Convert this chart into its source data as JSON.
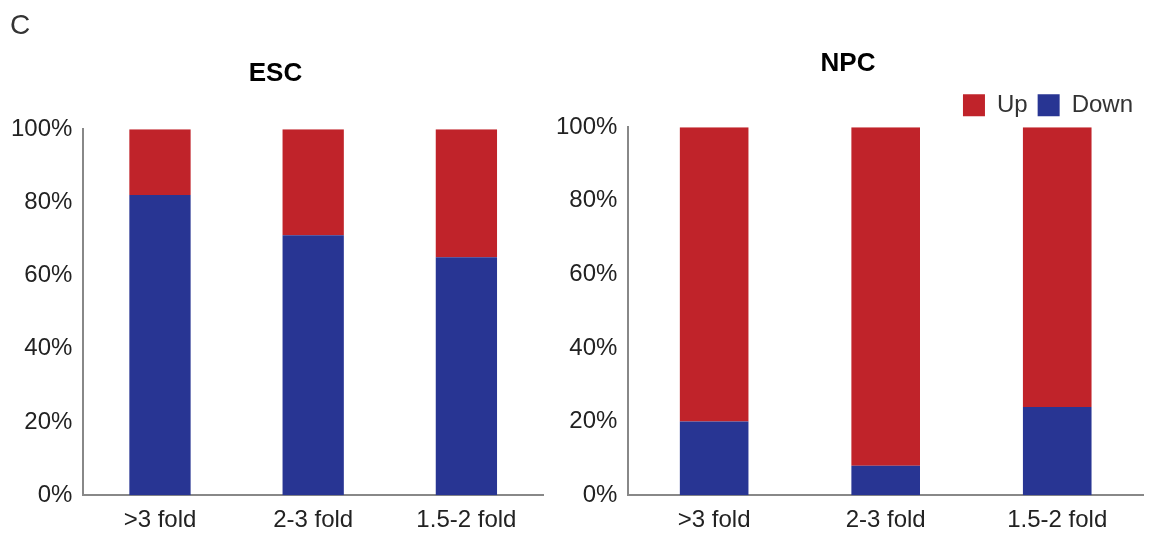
{
  "chart_data": [
    {
      "type": "bar",
      "title": "ESC",
      "annotations": [
        "C"
      ],
      "categories": [
        ">3 fold",
        "2-3 fold",
        "1.5-2 fold"
      ],
      "stacked": true,
      "legend": false,
      "grid": false,
      "ylim": [
        0,
        100
      ],
      "yticks": [
        {
          "value": 0,
          "label": "0%"
        },
        {
          "value": 20,
          "label": "20%"
        },
        {
          "value": 40,
          "label": "40%"
        },
        {
          "value": 60,
          "label": "60%"
        },
        {
          "value": 80,
          "label": "80%"
        },
        {
          "value": 100,
          "label": "100%"
        }
      ],
      "series": [
        {
          "color": "#283593",
          "values": [
            82,
            71,
            65
          ]
        },
        {
          "color": "#c0232a",
          "values": [
            18,
            29,
            35
          ]
        }
      ]
    },
    {
      "type": "bar",
      "title": "NPC",
      "categories": [
        ">3 fold",
        "2-3 fold",
        "1.5-2 fold"
      ],
      "stacked": true,
      "legend": "top right",
      "grid": false,
      "ylim": [
        0,
        100
      ],
      "yticks": [
        {
          "value": 0,
          "label": "0%"
        },
        {
          "value": 20,
          "label": "20%"
        },
        {
          "value": 40,
          "label": "40%"
        },
        {
          "value": 60,
          "label": "60%"
        },
        {
          "value": 80,
          "label": "80%"
        },
        {
          "value": 100,
          "label": "100%"
        }
      ],
      "series": [
        {
          "name": "Down",
          "color": "#283593",
          "values": [
            20,
            8,
            24
          ]
        },
        {
          "name": "Up",
          "color": "#c0232a",
          "values": [
            80,
            92,
            76
          ]
        }
      ]
    }
  ]
}
